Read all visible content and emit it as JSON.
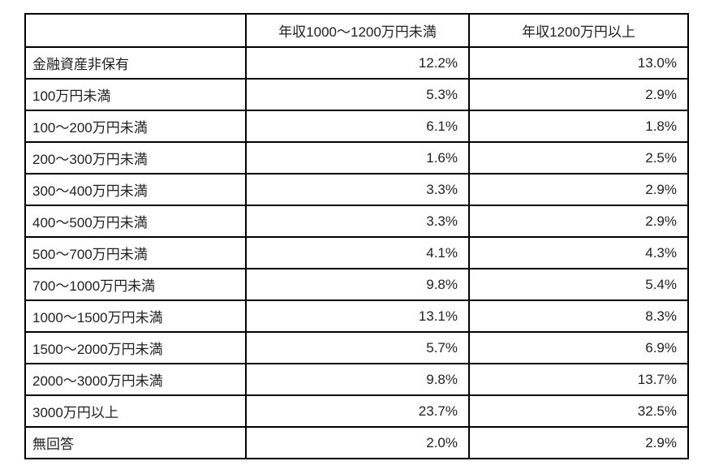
{
  "table": {
    "header": [
      "",
      "年収1000〜1200万円未満",
      "年収1200万円以上"
    ],
    "rows": [
      {
        "label": "金融資産非保有",
        "values": [
          "12.2%",
          "13.0%"
        ]
      },
      {
        "label": "100万円未満",
        "values": [
          "5.3%",
          "2.9%"
        ]
      },
      {
        "label": "100〜200万円未満",
        "values": [
          "6.1%",
          "1.8%"
        ]
      },
      {
        "label": "200〜300万円未満",
        "values": [
          "1.6%",
          "2.5%"
        ]
      },
      {
        "label": "300〜400万円未満",
        "values": [
          "3.3%",
          "2.9%"
        ]
      },
      {
        "label": "400〜500万円未満",
        "values": [
          "3.3%",
          "2.9%"
        ]
      },
      {
        "label": "500〜700万円未満",
        "values": [
          "4.1%",
          "4.3%"
        ]
      },
      {
        "label": "700〜1000万円未満",
        "values": [
          "9.8%",
          "5.4%"
        ]
      },
      {
        "label": "1000〜1500万円未満",
        "values": [
          "13.1%",
          "8.3%"
        ]
      },
      {
        "label": "1500〜2000万円未満",
        "values": [
          "5.7%",
          "6.9%"
        ]
      },
      {
        "label": "2000〜3000万円未満",
        "values": [
          "9.8%",
          "13.7%"
        ]
      },
      {
        "label": "3000万円以上",
        "values": [
          "23.7%",
          "32.5%"
        ]
      },
      {
        "label": "無回答",
        "values": [
          "2.0%",
          "2.9%"
        ]
      }
    ]
  },
  "chart_data": {
    "type": "table",
    "title": "",
    "columns": [
      "",
      "年収1000〜1200万円未満",
      "年収1200万円以上"
    ],
    "categories": [
      "金融資産非保有",
      "100万円未満",
      "100〜200万円未満",
      "200〜300万円未満",
      "300〜400万円未満",
      "400〜500万円未満",
      "500〜700万円未満",
      "700〜1000万円未満",
      "1000〜1500万円未満",
      "1500〜2000万円未満",
      "2000〜3000万円未満",
      "3000万円以上",
      "無回答"
    ],
    "series": [
      {
        "name": "年収1000〜1200万円未満",
        "values": [
          12.2,
          5.3,
          6.1,
          1.6,
          3.3,
          3.3,
          4.1,
          9.8,
          13.1,
          5.7,
          9.8,
          23.7,
          2.0
        ]
      },
      {
        "name": "年収1200万円以上",
        "values": [
          13.0,
          2.9,
          1.8,
          2.5,
          2.9,
          2.9,
          4.3,
          5.4,
          8.3,
          6.9,
          13.7,
          32.5,
          2.9
        ]
      }
    ],
    "unit": "%"
  },
  "colors": {
    "border": "#000000",
    "text": "#1f1f1f",
    "background": "#ffffff"
  }
}
